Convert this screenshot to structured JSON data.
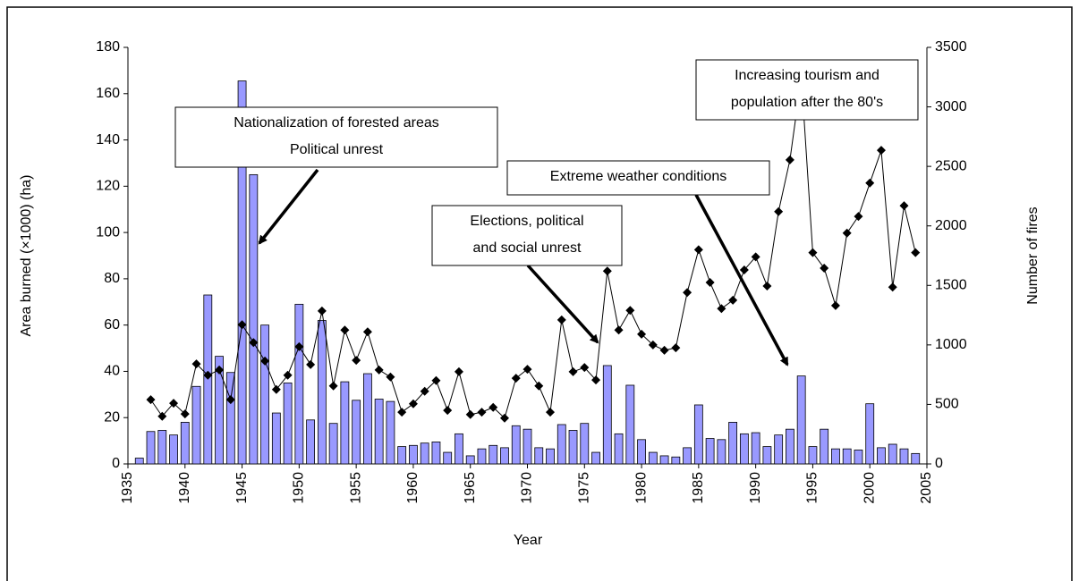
{
  "chart_data": {
    "type": "bar-line",
    "x_label": "Year",
    "y_label": "Area burned (×1000) (ha)",
    "y2_label": "Number of fires",
    "x": [
      1936,
      1937,
      1938,
      1939,
      1940,
      1941,
      1942,
      1943,
      1944,
      1945,
      1946,
      1947,
      1948,
      1949,
      1950,
      1951,
      1952,
      1953,
      1954,
      1955,
      1956,
      1957,
      1958,
      1959,
      1960,
      1961,
      1962,
      1963,
      1964,
      1965,
      1966,
      1967,
      1968,
      1969,
      1970,
      1971,
      1972,
      1973,
      1974,
      1975,
      1976,
      1977,
      1978,
      1979,
      1980,
      1981,
      1982,
      1983,
      1984,
      1985,
      1986,
      1987,
      1988,
      1989,
      1990,
      1991,
      1992,
      1993,
      1994,
      1995,
      1996,
      1997,
      1998,
      1999,
      2000,
      2001,
      2002,
      2003,
      2004
    ],
    "series": [
      {
        "name": "Area burned",
        "type": "bar",
        "color": "#9999ff",
        "values": [
          2.5,
          14,
          14.5,
          12.5,
          18,
          33.5,
          73,
          46.5,
          39.5,
          165.5,
          125,
          60,
          22,
          35,
          69,
          19,
          62,
          17.5,
          35.5,
          27.5,
          39,
          28,
          27,
          7.5,
          8,
          9,
          9.5,
          5,
          13,
          3.5,
          6.5,
          8,
          7,
          16.5,
          15,
          7,
          6.5,
          17,
          14.5,
          17.5,
          5,
          42.5,
          13,
          34,
          10.5,
          5,
          3.5,
          3,
          7,
          25.5,
          11,
          10.5,
          18,
          13,
          13.5,
          7.5,
          12.5,
          15,
          38,
          7.5,
          15,
          6.5,
          6.5,
          6,
          26,
          7,
          8.5,
          6.5,
          4.5
        ]
      },
      {
        "name": "Number of fires",
        "type": "line",
        "axis": "y2",
        "color": "#000000",
        "values": [
          null,
          540,
          400,
          510,
          420,
          840,
          745,
          790,
          540,
          1170,
          1020,
          865,
          625,
          745,
          985,
          835,
          1285,
          655,
          1125,
          870,
          1110,
          790,
          730,
          435,
          505,
          610,
          700,
          450,
          775,
          415,
          435,
          475,
          385,
          720,
          795,
          655,
          435,
          1210,
          775,
          810,
          705,
          1620,
          1125,
          1290,
          1090,
          1000,
          955,
          975,
          1440,
          1800,
          1525,
          1305,
          1375,
          1630,
          1740,
          1495,
          2120,
          2555,
          3250,
          1775,
          1645,
          1330,
          1940,
          2080,
          2360,
          2635,
          1485,
          2170,
          1775
        ]
      }
    ],
    "xlim": [
      1935,
      2005
    ],
    "xticks": [
      1935,
      1940,
      1945,
      1950,
      1955,
      1960,
      1965,
      1970,
      1975,
      1980,
      1985,
      1990,
      1995,
      2000,
      2005
    ],
    "ylim": [
      0,
      180
    ],
    "yticks": [
      0,
      20,
      40,
      60,
      80,
      100,
      120,
      140,
      160,
      180
    ],
    "y2lim": [
      0,
      3500
    ],
    "y2ticks": [
      0,
      500,
      1000,
      1500,
      2000,
      2500,
      3000,
      3500
    ],
    "annotations": [
      {
        "lines": [
          "Nationalization of forested areas",
          "Political unrest"
        ]
      },
      {
        "lines": [
          "Elections, political",
          "and social unrest"
        ]
      },
      {
        "lines": [
          "Extreme weather conditions"
        ]
      },
      {
        "lines": [
          "Increasing tourism and",
          "population after the 80's"
        ]
      }
    ]
  }
}
